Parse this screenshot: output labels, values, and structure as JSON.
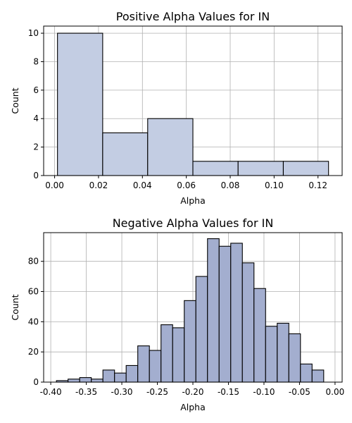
{
  "chart_data": [
    {
      "type": "bar",
      "subtype": "histogram",
      "title": "Positive Alpha Values for IN",
      "xlabel": "Alpha",
      "ylabel": "Count",
      "xlim": [
        -0.005,
        0.131
      ],
      "ylim": [
        0,
        10.5
      ],
      "xticks": [
        0.0,
        0.02,
        0.04,
        0.06,
        0.08,
        0.1,
        0.12
      ],
      "xtick_labels": [
        "0.00",
        "0.02",
        "0.04",
        "0.06",
        "0.08",
        "0.10",
        "0.12"
      ],
      "yticks": [
        0,
        2,
        4,
        6,
        8,
        10
      ],
      "ytick_labels": [
        "0",
        "2",
        "4",
        "6",
        "8",
        "10"
      ],
      "grid": true,
      "bar_color": "#c3cde3",
      "bins": [
        {
          "start": 0.0013,
          "end": 0.0219,
          "count": 10
        },
        {
          "start": 0.0219,
          "end": 0.0424,
          "count": 3
        },
        {
          "start": 0.0424,
          "end": 0.063,
          "count": 4
        },
        {
          "start": 0.063,
          "end": 0.0836,
          "count": 1
        },
        {
          "start": 0.0836,
          "end": 0.1042,
          "count": 1
        },
        {
          "start": 0.1042,
          "end": 0.1248,
          "count": 1
        }
      ]
    },
    {
      "type": "bar",
      "subtype": "histogram",
      "title": "Negative Alpha Values for IN",
      "xlabel": "Alpha",
      "ylabel": "Count",
      "xlim": [
        -0.41,
        0.01
      ],
      "ylim": [
        0,
        99
      ],
      "xticks": [
        -0.4,
        -0.35,
        -0.3,
        -0.25,
        -0.2,
        -0.15,
        -0.1,
        -0.05,
        0.0
      ],
      "xtick_labels": [
        "-0.40",
        "-0.35",
        "-0.30",
        "-0.25",
        "-0.20",
        "-0.15",
        "-0.10",
        "-0.05",
        "0.00"
      ],
      "yticks": [
        0,
        20,
        40,
        60,
        80
      ],
      "ytick_labels": [
        "0",
        "20",
        "40",
        "60",
        "80"
      ],
      "grid": true,
      "bar_color": "#a3aecf",
      "bin_start": -0.392,
      "bin_width": 0.01635,
      "counts": [
        1,
        2,
        3,
        2,
        8,
        6,
        11,
        24,
        21,
        38,
        36,
        54,
        70,
        95,
        90,
        92,
        79,
        62,
        37,
        39,
        32,
        12,
        8
      ]
    }
  ]
}
